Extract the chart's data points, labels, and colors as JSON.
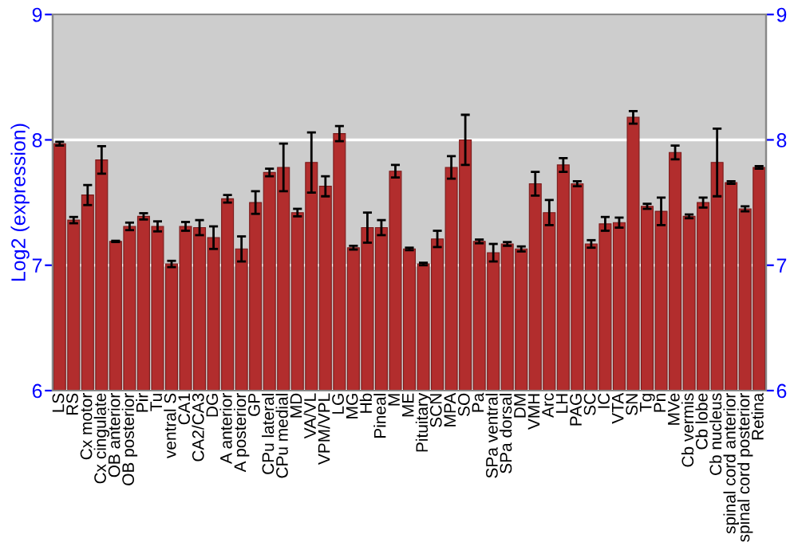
{
  "chart_data": {
    "type": "bar",
    "ylabel": "Log2 (expression)",
    "categories": [
      "LS",
      "RS",
      "Cx motor",
      "Cx cingulate",
      "OB anterior",
      "OB posterior",
      "Pir",
      "Tu",
      "ventral S",
      "CA1",
      "CA2/CA3",
      "DG",
      "A anterior",
      "A posterior",
      "GP",
      "CPu lateral",
      "CPu medial",
      "MD",
      "VA/VL",
      "VPM/VPL",
      "LG",
      "MG",
      "Hb",
      "Pineal",
      "M",
      "ME",
      "Pituitary",
      "SCN",
      "MPA",
      "SO",
      "Pa",
      "SPa ventral",
      "SPa dorsal",
      "DM",
      "VMH",
      "Arc",
      "LH",
      "PAG",
      "SC",
      "IC",
      "VTA",
      "SN",
      "Tg",
      "Pn",
      "MVe",
      "Cb vermis",
      "Cb lobe",
      "Cb nucleus",
      "spinal cord anterior",
      "spinal cord posterior",
      "Retina"
    ],
    "values": [
      7.97,
      7.36,
      7.56,
      7.84,
      7.19,
      7.31,
      7.39,
      7.31,
      7.01,
      7.31,
      7.3,
      7.22,
      7.53,
      7.13,
      7.5,
      7.74,
      7.78,
      7.42,
      7.82,
      7.63,
      8.05,
      7.14,
      7.3,
      7.3,
      7.75,
      7.13,
      7.01,
      7.21,
      7.78,
      8.0,
      7.19,
      7.1,
      7.17,
      7.13,
      7.65,
      7.42,
      7.8,
      7.65,
      7.17,
      7.33,
      7.34,
      8.18,
      7.47,
      7.43,
      7.9,
      7.39,
      7.5,
      7.82,
      7.66,
      7.45,
      7.78
    ],
    "errors": [
      0.015,
      0.025,
      0.08,
      0.11,
      0.005,
      0.03,
      0.025,
      0.04,
      0.025,
      0.035,
      0.06,
      0.09,
      0.03,
      0.1,
      0.09,
      0.03,
      0.19,
      0.03,
      0.24,
      0.08,
      0.06,
      0.015,
      0.12,
      0.06,
      0.05,
      0.01,
      0.01,
      0.065,
      0.09,
      0.2,
      0.015,
      0.07,
      0.015,
      0.02,
      0.095,
      0.1,
      0.055,
      0.02,
      0.03,
      0.055,
      0.04,
      0.05,
      0.02,
      0.11,
      0.055,
      0.015,
      0.04,
      0.27,
      0.01,
      0.02,
      0.01
    ],
    "color": "#b22d2d",
    "ylim": [
      6,
      9
    ],
    "yticks": [
      6,
      7,
      8,
      9
    ],
    "y2lim": [
      6,
      9
    ],
    "y2ticks": [
      6,
      7,
      8,
      9
    ],
    "grid": "y"
  }
}
